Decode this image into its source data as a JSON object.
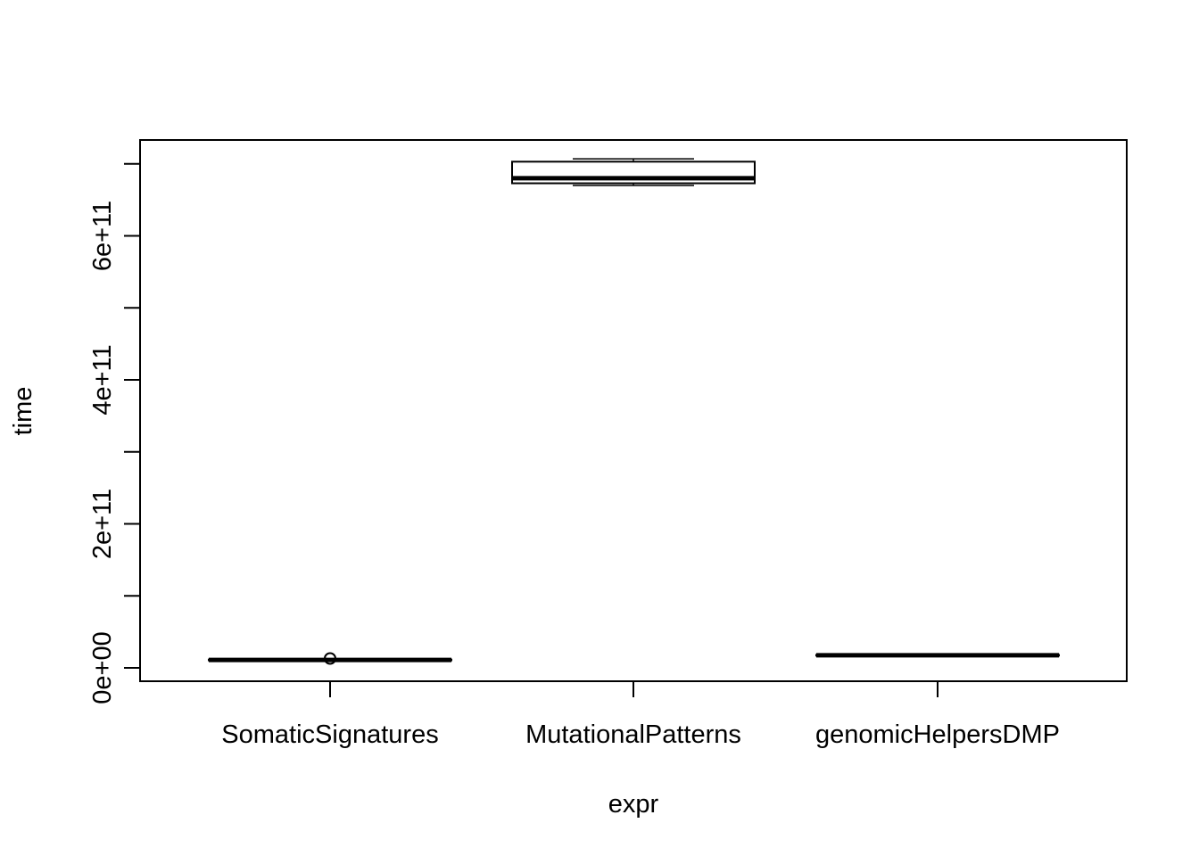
{
  "chart_data": {
    "type": "boxplot",
    "title": "",
    "xlabel": "expr",
    "ylabel": "time",
    "categories": [
      "SomaticSignatures",
      "MutationalPatterns",
      "genomicHelpersDMP"
    ],
    "ylim": [
      -35000000000.0,
      720000000000.0
    ],
    "y_ticks": [
      0,
      100000000000.0,
      200000000000.0,
      300000000000.0,
      400000000000.0,
      500000000000.0,
      600000000000.0,
      700000000000.0
    ],
    "y_tick_labels": [
      {
        "value": 0,
        "label": "0e+00"
      },
      {
        "value": 200000000000.0,
        "label": "2e+11"
      },
      {
        "value": 400000000000.0,
        "label": "4e+11"
      },
      {
        "value": 600000000000.0,
        "label": "6e+11"
      }
    ],
    "grid": false,
    "legend": "none",
    "boxes": [
      {
        "name": "SomaticSignatures",
        "min": 10000000000.0,
        "q1": 10500000000.0,
        "median": 11000000000.0,
        "q3": 11500000000.0,
        "max": 12000000000.0,
        "outliers": [
          13000000000.0
        ]
      },
      {
        "name": "MutationalPatterns",
        "min": 670000000000.0,
        "q1": 673000000000.0,
        "median": 680000000000.0,
        "q3": 703000000000.0,
        "max": 707000000000.0,
        "outliers": []
      },
      {
        "name": "genomicHelpersDMP",
        "min": 16500000000.0,
        "q1": 17000000000.0,
        "median": 17500000000.0,
        "q3": 18000000000.0,
        "max": 18500000000.0,
        "outliers": []
      }
    ]
  }
}
